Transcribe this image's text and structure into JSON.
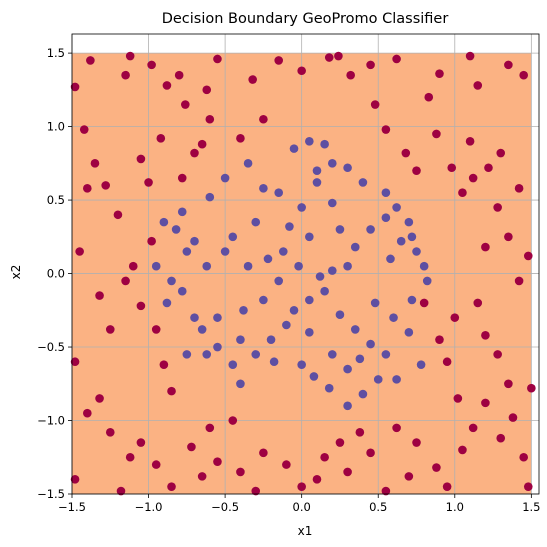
{
  "chart_data": {
    "type": "scatter",
    "title": "Decision Boundary GeoPromo Classifier",
    "xlabel": "x1",
    "ylabel": "x2",
    "xlim": [
      -1.5,
      1.55
    ],
    "ylim": [
      -1.5,
      1.63
    ],
    "xticks": [
      -1.5,
      -1.0,
      -0.5,
      0.0,
      0.5,
      1.0,
      1.5
    ],
    "yticks": [
      -1.5,
      -1.0,
      -0.5,
      0.0,
      0.5,
      1.0,
      1.5
    ],
    "xtick_labels": [
      "−1.5",
      "−1.0",
      "−0.5",
      "0.0",
      "0.5",
      "1.0",
      "1.5"
    ],
    "ytick_labels": [
      "−1.5",
      "−1.0",
      "−0.5",
      "0.0",
      "0.5",
      "1.0",
      "1.5"
    ],
    "grid": true,
    "region": {
      "x": [
        -1.5,
        1.5
      ],
      "y": [
        -1.5,
        1.5
      ],
      "color": "#fbb283"
    },
    "colors": {
      "outer": "#9e0142",
      "inner": "#5e4fa2",
      "grid": "#b0b0b0"
    },
    "series": [
      {
        "class": "outer",
        "points": [
          [
            -1.48,
            1.27
          ],
          [
            -1.38,
            1.45
          ],
          [
            -1.15,
            1.35
          ],
          [
            -1.12,
            1.48
          ],
          [
            -0.98,
            1.42
          ],
          [
            -0.88,
            1.28
          ],
          [
            -0.8,
            1.35
          ],
          [
            -0.76,
            1.15
          ],
          [
            -0.62,
            1.25
          ],
          [
            -0.55,
            1.46
          ],
          [
            -0.32,
            1.32
          ],
          [
            -0.15,
            1.45
          ],
          [
            0.0,
            1.38
          ],
          [
            0.18,
            1.47
          ],
          [
            0.24,
            1.48
          ],
          [
            0.32,
            1.35
          ],
          [
            0.45,
            1.42
          ],
          [
            0.62,
            1.46
          ],
          [
            0.83,
            1.2
          ],
          [
            0.9,
            1.36
          ],
          [
            1.1,
            1.48
          ],
          [
            1.15,
            1.28
          ],
          [
            1.35,
            1.42
          ],
          [
            1.45,
            1.35
          ],
          [
            -1.42,
            0.98
          ],
          [
            -1.35,
            0.75
          ],
          [
            -1.4,
            0.58
          ],
          [
            -1.28,
            0.6
          ],
          [
            -1.2,
            0.4
          ],
          [
            -1.05,
            0.78
          ],
          [
            -1.0,
            0.62
          ],
          [
            -0.98,
            0.22
          ],
          [
            -0.92,
            0.92
          ],
          [
            -0.78,
            0.65
          ],
          [
            -0.7,
            0.82
          ],
          [
            -0.65,
            0.88
          ],
          [
            -0.6,
            1.05
          ],
          [
            -0.4,
            0.92
          ],
          [
            -0.25,
            1.05
          ],
          [
            0.48,
            1.15
          ],
          [
            0.55,
            0.98
          ],
          [
            0.68,
            0.82
          ],
          [
            0.75,
            0.7
          ],
          [
            0.88,
            0.95
          ],
          [
            0.98,
            0.72
          ],
          [
            1.05,
            0.55
          ],
          [
            1.12,
            0.65
          ],
          [
            1.22,
            0.72
          ],
          [
            1.2,
            0.18
          ],
          [
            1.28,
            0.45
          ],
          [
            1.35,
            0.25
          ],
          [
            1.42,
            0.58
          ],
          [
            1.48,
            0.12
          ],
          [
            1.1,
            0.9
          ],
          [
            1.3,
            0.82
          ],
          [
            -1.45,
            0.15
          ],
          [
            -1.32,
            -0.15
          ],
          [
            -1.25,
            -0.38
          ],
          [
            -1.15,
            -0.05
          ],
          [
            -1.1,
            0.05
          ],
          [
            -1.05,
            -0.22
          ],
          [
            -0.95,
            -0.38
          ],
          [
            -0.9,
            -0.62
          ],
          [
            -0.85,
            -0.8
          ],
          [
            0.9,
            -0.45
          ],
          [
            0.95,
            -0.6
          ],
          [
            1.0,
            -0.3
          ],
          [
            1.15,
            -0.2
          ],
          [
            1.2,
            -0.42
          ],
          [
            1.28,
            -0.55
          ],
          [
            1.35,
            -0.75
          ],
          [
            1.42,
            -0.05
          ],
          [
            1.5,
            -0.78
          ],
          [
            0.8,
            -0.2
          ],
          [
            -1.48,
            -0.6
          ],
          [
            -1.4,
            -0.95
          ],
          [
            -1.32,
            -0.85
          ],
          [
            -1.25,
            -1.08
          ],
          [
            -1.12,
            -1.25
          ],
          [
            -1.05,
            -1.15
          ],
          [
            -0.95,
            -1.3
          ],
          [
            -0.85,
            -1.45
          ],
          [
            -0.72,
            -1.18
          ],
          [
            -0.6,
            -1.05
          ],
          [
            -0.55,
            -1.28
          ],
          [
            -0.45,
            -1.0
          ],
          [
            -0.4,
            -1.35
          ],
          [
            -0.25,
            -1.22
          ],
          [
            -0.1,
            -1.3
          ],
          [
            0.0,
            -1.45
          ],
          [
            0.1,
            -1.4
          ],
          [
            0.15,
            -1.25
          ],
          [
            0.3,
            -1.35
          ],
          [
            0.38,
            -1.08
          ],
          [
            0.45,
            -1.22
          ],
          [
            0.55,
            -1.48
          ],
          [
            0.62,
            -1.05
          ],
          [
            0.75,
            -1.15
          ],
          [
            0.88,
            -1.32
          ],
          [
            0.95,
            -1.45
          ],
          [
            1.05,
            -1.2
          ],
          [
            1.12,
            -1.05
          ],
          [
            1.2,
            -0.88
          ],
          [
            1.3,
            -1.12
          ],
          [
            1.38,
            -0.98
          ],
          [
            1.45,
            -1.25
          ],
          [
            1.48,
            -1.45
          ],
          [
            1.02,
            -0.85
          ],
          [
            0.7,
            -1.38
          ],
          [
            -0.3,
            -1.48
          ],
          [
            -1.48,
            -1.4
          ],
          [
            -1.18,
            -1.48
          ],
          [
            -0.65,
            -1.38
          ],
          [
            0.25,
            -1.15
          ]
        ]
      },
      {
        "class": "inner",
        "points": [
          [
            -0.05,
            0.85
          ],
          [
            0.05,
            0.9
          ],
          [
            0.15,
            0.88
          ],
          [
            0.2,
            0.75
          ],
          [
            0.3,
            0.72
          ],
          [
            0.1,
            0.7
          ],
          [
            -0.25,
            0.58
          ],
          [
            -0.35,
            0.75
          ],
          [
            -0.5,
            0.65
          ],
          [
            -0.6,
            0.52
          ],
          [
            -0.78,
            0.42
          ],
          [
            -0.82,
            0.3
          ],
          [
            -0.9,
            0.35
          ],
          [
            -0.7,
            0.22
          ],
          [
            -0.75,
            0.15
          ],
          [
            -0.95,
            0.05
          ],
          [
            -0.85,
            -0.05
          ],
          [
            -0.78,
            -0.12
          ],
          [
            -0.88,
            -0.2
          ],
          [
            -0.7,
            -0.3
          ],
          [
            -0.65,
            -0.38
          ],
          [
            -0.75,
            -0.55
          ],
          [
            -0.62,
            -0.55
          ],
          [
            -0.55,
            -0.5
          ],
          [
            -0.45,
            -0.62
          ],
          [
            -0.4,
            -0.75
          ],
          [
            -0.3,
            -0.55
          ],
          [
            -0.2,
            -0.45
          ],
          [
            -0.1,
            -0.35
          ],
          [
            -0.05,
            -0.25
          ],
          [
            0.05,
            -0.18
          ],
          [
            0.15,
            -0.12
          ],
          [
            0.25,
            -0.28
          ],
          [
            0.35,
            -0.38
          ],
          [
            0.45,
            -0.48
          ],
          [
            0.55,
            -0.55
          ],
          [
            0.5,
            -0.72
          ],
          [
            0.4,
            -0.82
          ],
          [
            0.3,
            -0.9
          ],
          [
            0.18,
            -0.78
          ],
          [
            0.08,
            -0.7
          ],
          [
            0.0,
            -0.62
          ],
          [
            0.55,
            0.55
          ],
          [
            0.62,
            0.45
          ],
          [
            0.7,
            0.35
          ],
          [
            0.72,
            0.25
          ],
          [
            0.75,
            0.15
          ],
          [
            0.8,
            0.05
          ],
          [
            0.82,
            -0.05
          ],
          [
            0.65,
            0.22
          ],
          [
            0.55,
            0.38
          ],
          [
            0.45,
            0.3
          ],
          [
            0.35,
            0.18
          ],
          [
            0.3,
            0.05
          ],
          [
            0.2,
            0.02
          ],
          [
            0.12,
            -0.02
          ],
          [
            -0.02,
            0.05
          ],
          [
            -0.12,
            0.15
          ],
          [
            -0.22,
            0.1
          ],
          [
            -0.35,
            0.05
          ],
          [
            -0.45,
            0.25
          ],
          [
            -0.5,
            0.15
          ],
          [
            -0.3,
            0.35
          ],
          [
            -0.15,
            0.55
          ],
          [
            0.0,
            0.45
          ],
          [
            0.1,
            0.62
          ],
          [
            0.2,
            0.48
          ],
          [
            0.4,
            0.62
          ],
          [
            0.6,
            -0.3
          ],
          [
            0.7,
            -0.4
          ],
          [
            0.72,
            -0.18
          ],
          [
            0.78,
            -0.62
          ],
          [
            0.62,
            -0.72
          ],
          [
            -0.55,
            -0.3
          ],
          [
            -0.38,
            -0.25
          ],
          [
            -0.25,
            -0.18
          ],
          [
            -0.15,
            -0.05
          ],
          [
            0.05,
            -0.4
          ],
          [
            -0.18,
            -0.6
          ],
          [
            0.2,
            -0.55
          ],
          [
            0.3,
            -0.65
          ],
          [
            0.48,
            -0.2
          ],
          [
            0.58,
            0.1
          ],
          [
            -0.62,
            0.05
          ],
          [
            -0.4,
            -0.45
          ],
          [
            0.38,
            -0.58
          ],
          [
            0.05,
            0.25
          ],
          [
            -0.08,
            0.32
          ],
          [
            0.25,
            0.3
          ]
        ]
      }
    ]
  }
}
